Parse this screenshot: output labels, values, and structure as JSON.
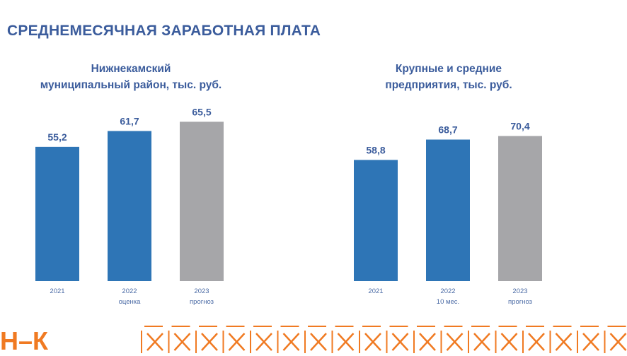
{
  "title": "СРЕДНЕМЕСЯЧНАЯ ЗАРАБОТНАЯ ПЛАТА",
  "logo_text": "Н–К",
  "colors": {
    "actual": "#2e75b6",
    "forecast": "#a6a6a9",
    "title": "#3b5c9c",
    "accent": "#f07a22"
  },
  "chart_data": [
    {
      "type": "bar",
      "title_lines": [
        "Нижнекамский",
        "муниципальный район, тыс. руб."
      ],
      "categories": [
        "2021",
        "2022",
        "2023"
      ],
      "category_sublabels": [
        "",
        "оценка",
        "прогноз"
      ],
      "values": [
        55.2,
        61.7,
        65.5
      ],
      "value_labels": [
        "55,2",
        "61,7",
        "65,5"
      ],
      "bar_colors": [
        "#2e75b6",
        "#2e75b6",
        "#a6a6a9"
      ],
      "ylim": [
        0,
        72
      ],
      "grid": false
    },
    {
      "type": "bar",
      "title_lines": [
        "Крупные и средние",
        "предприятия, тыс. руб."
      ],
      "categories": [
        "2021",
        "2022",
        "2023"
      ],
      "category_sublabels": [
        "",
        "10 мес.",
        "прогноз"
      ],
      "values": [
        58.8,
        68.7,
        70.4
      ],
      "value_labels": [
        "58,8",
        "68,7",
        "70,4"
      ],
      "bar_colors": [
        "#2e75b6",
        "#2e75b6",
        "#a6a6a9"
      ],
      "ylim": [
        0,
        85
      ],
      "grid": false
    }
  ]
}
